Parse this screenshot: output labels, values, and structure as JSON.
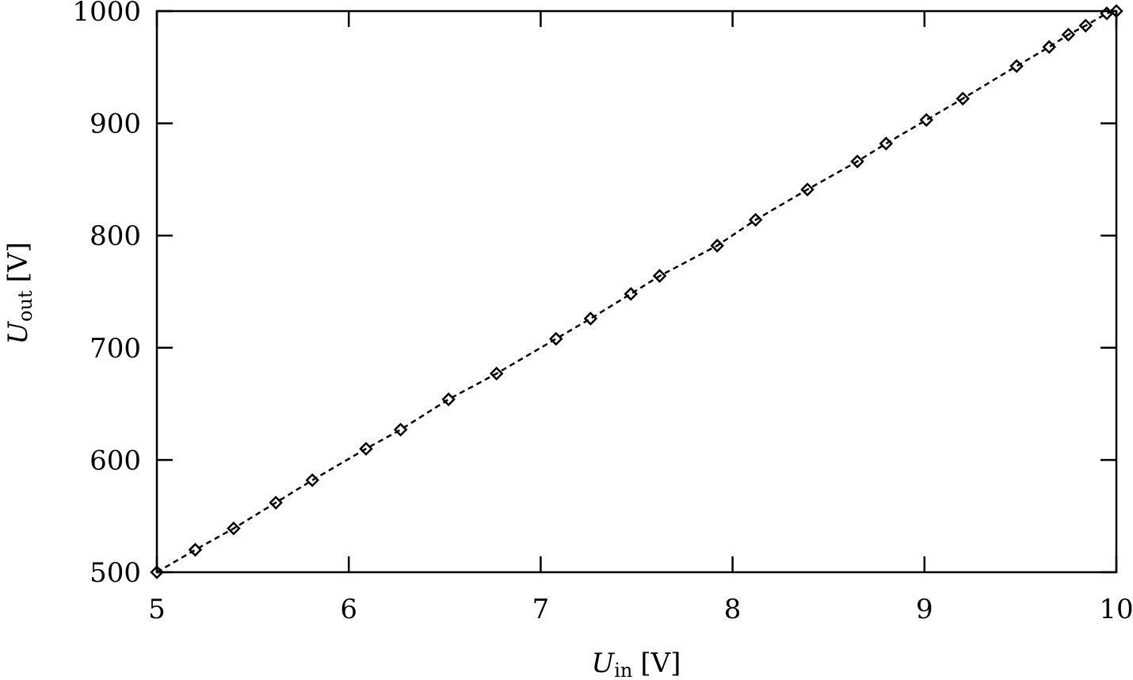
{
  "chart_data": {
    "type": "line",
    "title": "",
    "xlabel": {
      "symbol": "U",
      "subscript": "in",
      "unit": "[V]"
    },
    "ylabel": {
      "symbol": "U",
      "subscript": "out",
      "unit": "[V]"
    },
    "xlim": [
      5,
      10
    ],
    "ylim": [
      500,
      1000
    ],
    "xticks": [
      5,
      6,
      7,
      8,
      9,
      10
    ],
    "yticks": [
      500,
      600,
      700,
      800,
      900,
      1000
    ],
    "xtick_labels": [
      "5",
      "6",
      "7",
      "8",
      "9",
      "10"
    ],
    "ytick_labels": [
      "500",
      "600",
      "700",
      "800",
      "900",
      "1000"
    ],
    "grid": false,
    "marker": "diamond-open",
    "line_style": "dashed",
    "color": "#000000",
    "series": [
      {
        "x": [
          5.0,
          5.2,
          5.4,
          5.62,
          5.81,
          6.09,
          6.27,
          6.52,
          6.77,
          7.08,
          7.26,
          7.47,
          7.62,
          7.92,
          8.12,
          8.39,
          8.65,
          8.8,
          9.01,
          9.2,
          9.48,
          9.65,
          9.75,
          9.84,
          9.95,
          10.0
        ],
        "y": [
          500,
          520,
          539,
          562,
          582,
          610,
          627,
          654,
          677,
          708,
          726,
          748,
          764,
          791,
          814,
          841,
          866,
          882,
          903,
          922,
          951,
          968,
          979,
          987,
          998,
          1000
        ]
      }
    ]
  }
}
